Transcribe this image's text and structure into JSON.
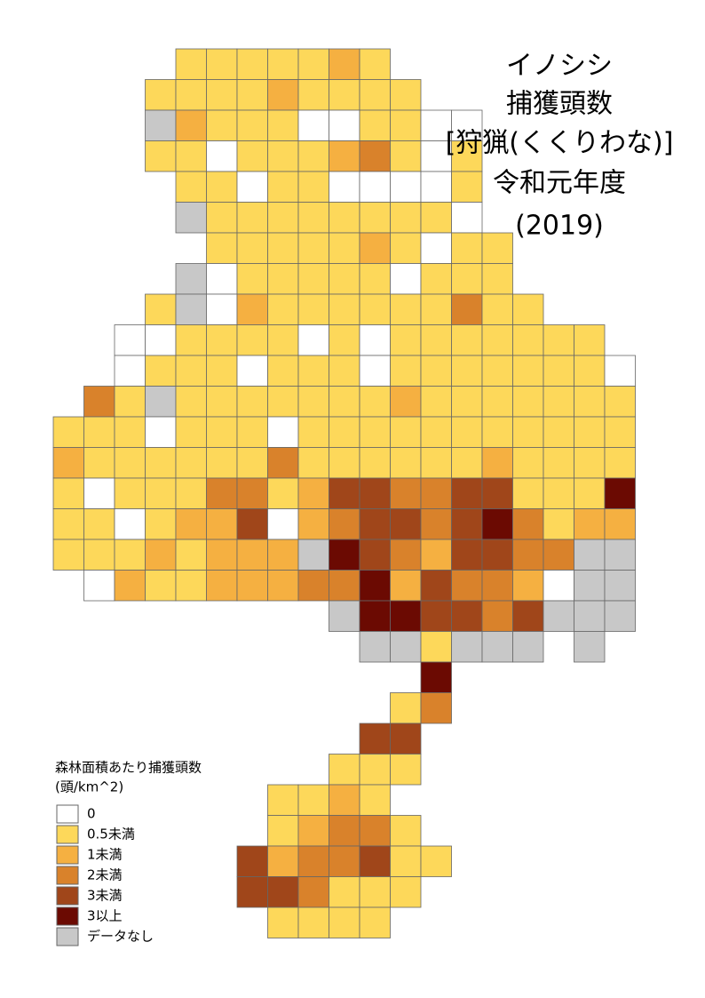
{
  "title": [
    "イノシシ",
    "捕獲頭数",
    "[狩猟(くくりわな)]",
    "令和元年度",
    "(2019)"
  ],
  "legend": {
    "title": [
      "森林面積あたり捕獲頭数",
      "(頭/km^2)"
    ],
    "items": [
      {
        "label": "0",
        "color": "#ffffff"
      },
      {
        "label": "0.5未満",
        "color": "#fdd85a"
      },
      {
        "label": "1未満",
        "color": "#f5b041"
      },
      {
        "label": "2未満",
        "color": "#d9822b"
      },
      {
        "label": "3未満",
        "color": "#a0461a"
      },
      {
        "label": "3以上",
        "color": "#6b0a02"
      },
      {
        "label": "データなし",
        "color": "#c8c8c8"
      }
    ]
  },
  "map": {
    "cells": [
      [
        null,
        null,
        null,
        null,
        1,
        1,
        1,
        1,
        1,
        2,
        1,
        null,
        null,
        null,
        null,
        null,
        null,
        null,
        null
      ],
      [
        null,
        null,
        null,
        1,
        1,
        1,
        1,
        2,
        1,
        1,
        1,
        1,
        null,
        null,
        null,
        null,
        null,
        null,
        null
      ],
      [
        null,
        null,
        null,
        6,
        2,
        1,
        1,
        1,
        0,
        0,
        1,
        1,
        0,
        0,
        null,
        null,
        null,
        null,
        null
      ],
      [
        null,
        null,
        null,
        1,
        1,
        0,
        1,
        1,
        1,
        2,
        3,
        1,
        0,
        1,
        null,
        null,
        null,
        null,
        null
      ],
      [
        null,
        null,
        null,
        null,
        1,
        1,
        0,
        1,
        1,
        0,
        0,
        0,
        0,
        1,
        null,
        null,
        null,
        null,
        null
      ],
      [
        null,
        null,
        null,
        null,
        6,
        1,
        1,
        1,
        1,
        1,
        1,
        1,
        1,
        0,
        null,
        null,
        null,
        null,
        null
      ],
      [
        null,
        null,
        null,
        null,
        null,
        1,
        1,
        1,
        1,
        1,
        2,
        1,
        0,
        1,
        1,
        null,
        null,
        null,
        null
      ],
      [
        null,
        null,
        null,
        null,
        6,
        0,
        1,
        1,
        1,
        1,
        1,
        0,
        1,
        1,
        1,
        null,
        null,
        null,
        null
      ],
      [
        null,
        null,
        null,
        1,
        6,
        0,
        2,
        1,
        1,
        1,
        1,
        1,
        1,
        3,
        1,
        1,
        null,
        null,
        null
      ],
      [
        null,
        null,
        0,
        0,
        1,
        1,
        1,
        1,
        0,
        1,
        0,
        1,
        1,
        1,
        1,
        1,
        1,
        1,
        null
      ],
      [
        null,
        null,
        0,
        1,
        1,
        1,
        0,
        1,
        1,
        1,
        0,
        1,
        1,
        1,
        1,
        1,
        1,
        1,
        0
      ],
      [
        null,
        3,
        1,
        6,
        1,
        1,
        1,
        1,
        1,
        1,
        1,
        2,
        1,
        1,
        1,
        1,
        1,
        1,
        1
      ],
      [
        1,
        1,
        1,
        0,
        1,
        1,
        1,
        0,
        1,
        1,
        1,
        1,
        1,
        1,
        1,
        1,
        1,
        1,
        1
      ],
      [
        2,
        1,
        1,
        1,
        1,
        1,
        1,
        3,
        1,
        1,
        1,
        1,
        1,
        1,
        2,
        1,
        1,
        1,
        1
      ],
      [
        1,
        0,
        1,
        1,
        1,
        3,
        3,
        1,
        2,
        4,
        4,
        3,
        3,
        4,
        4,
        1,
        1,
        1,
        5
      ],
      [
        1,
        1,
        0,
        1,
        2,
        2,
        4,
        0,
        2,
        3,
        4,
        4,
        3,
        4,
        5,
        3,
        1,
        2,
        2
      ],
      [
        1,
        1,
        1,
        2,
        1,
        2,
        2,
        2,
        6,
        5,
        4,
        3,
        2,
        4,
        4,
        3,
        3,
        6,
        6
      ],
      [
        null,
        0,
        2,
        1,
        1,
        2,
        2,
        2,
        3,
        3,
        5,
        2,
        4,
        3,
        3,
        2,
        0,
        6,
        6
      ],
      [
        null,
        null,
        null,
        null,
        null,
        null,
        null,
        null,
        null,
        6,
        5,
        5,
        4,
        4,
        3,
        4,
        6,
        6,
        6
      ],
      [
        null,
        null,
        null,
        null,
        null,
        null,
        null,
        null,
        null,
        null,
        6,
        6,
        1,
        6,
        6,
        6,
        null,
        6,
        null
      ],
      [
        null,
        null,
        null,
        null,
        null,
        null,
        null,
        null,
        null,
        null,
        null,
        null,
        5,
        null,
        null,
        null,
        null,
        null,
        null
      ],
      [
        null,
        null,
        null,
        null,
        null,
        null,
        null,
        null,
        null,
        null,
        null,
        1,
        3,
        null,
        null,
        null,
        null,
        null,
        null
      ],
      [
        null,
        null,
        null,
        null,
        null,
        null,
        null,
        null,
        null,
        null,
        4,
        4,
        null,
        null,
        null,
        null,
        null,
        null,
        null
      ],
      [
        null,
        null,
        null,
        null,
        null,
        null,
        null,
        null,
        null,
        1,
        1,
        1,
        null,
        null,
        null,
        null,
        null,
        null,
        null
      ],
      [
        null,
        null,
        null,
        null,
        null,
        null,
        null,
        1,
        1,
        2,
        1,
        null,
        null,
        null,
        null,
        null,
        null,
        null,
        null
      ],
      [
        null,
        null,
        null,
        null,
        null,
        null,
        null,
        1,
        2,
        3,
        3,
        1,
        null,
        null,
        null,
        null,
        null,
        null,
        null
      ],
      [
        null,
        null,
        null,
        null,
        null,
        null,
        4,
        2,
        3,
        3,
        4,
        1,
        1,
        null,
        null,
        null,
        null,
        null,
        null
      ],
      [
        null,
        null,
        null,
        null,
        null,
        null,
        4,
        4,
        3,
        1,
        1,
        1,
        null,
        null,
        null,
        null,
        null,
        null,
        null
      ],
      [
        null,
        null,
        null,
        null,
        null,
        null,
        null,
        1,
        1,
        1,
        1,
        null,
        null,
        null,
        null,
        null,
        null,
        null,
        null
      ]
    ]
  }
}
